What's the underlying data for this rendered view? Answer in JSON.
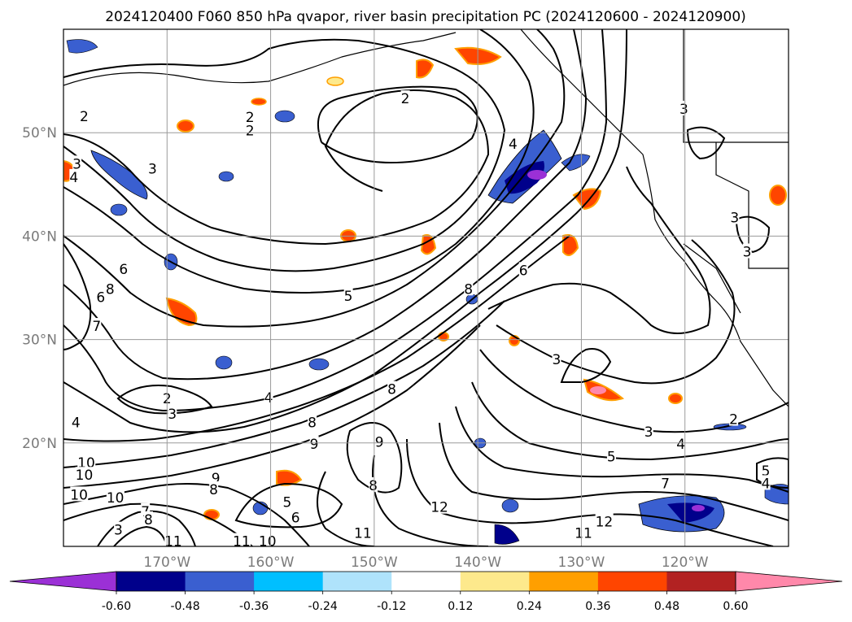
{
  "title": "2024120400 F060 850 hPa qvapor, river basin precipitation PC (2024120600 - 2024120900)",
  "map": {
    "lon_range": [
      -180,
      -110
    ],
    "lat_range": [
      10,
      60
    ],
    "lat_ticks": [
      {
        "value": 50,
        "label": "50°N"
      },
      {
        "value": 40,
        "label": "40°N"
      },
      {
        "value": 30,
        "label": "30°N"
      },
      {
        "value": 20,
        "label": "20°N"
      }
    ],
    "lon_ticks": [
      {
        "value": -170,
        "label": "170°W"
      },
      {
        "value": -160,
        "label": "160°W"
      },
      {
        "value": -150,
        "label": "150°W"
      },
      {
        "value": -140,
        "label": "140°W"
      },
      {
        "value": -130,
        "label": "130°W"
      },
      {
        "value": -120,
        "label": "120°W"
      }
    ],
    "contour_labels": [
      {
        "text": "2",
        "lon": -147,
        "lat": 53.3
      },
      {
        "text": "2",
        "lon": -178,
        "lat": 51.6
      },
      {
        "text": "2",
        "lon": -162,
        "lat": 51.5
      },
      {
        "text": "2",
        "lon": -162,
        "lat": 50.2
      },
      {
        "text": "3",
        "lon": -171.4,
        "lat": 46.5
      },
      {
        "text": "3",
        "lon": -178.7,
        "lat": 47
      },
      {
        "text": "4",
        "lon": -179,
        "lat": 45.7
      },
      {
        "text": "4",
        "lon": -136.6,
        "lat": 48.9
      },
      {
        "text": "3",
        "lon": -120.1,
        "lat": 52.3
      },
      {
        "text": "3",
        "lon": -115.2,
        "lat": 41.8
      },
      {
        "text": "3",
        "lon": -114,
        "lat": 38.5
      },
      {
        "text": "6",
        "lon": -174.2,
        "lat": 36.8
      },
      {
        "text": "8",
        "lon": -175.5,
        "lat": 34.9
      },
      {
        "text": "6",
        "lon": -176.4,
        "lat": 34.1
      },
      {
        "text": "7",
        "lon": -176.8,
        "lat": 31.3
      },
      {
        "text": "5",
        "lon": -152.5,
        "lat": 34.2
      },
      {
        "text": "6",
        "lon": -135.6,
        "lat": 36.7
      },
      {
        "text": "8",
        "lon": -140.9,
        "lat": 34.9
      },
      {
        "text": "3",
        "lon": -132.4,
        "lat": 28.1
      },
      {
        "text": "2",
        "lon": -170,
        "lat": 24.3
      },
      {
        "text": "3",
        "lon": -169.5,
        "lat": 22.8
      },
      {
        "text": "4",
        "lon": -178.8,
        "lat": 22
      },
      {
        "text": "4",
        "lon": -160.2,
        "lat": 24.4
      },
      {
        "text": "8",
        "lon": -156,
        "lat": 22
      },
      {
        "text": "8",
        "lon": -148.3,
        "lat": 25.2
      },
      {
        "text": "9",
        "lon": -149.5,
        "lat": 20.1
      },
      {
        "text": "9",
        "lon": -155.8,
        "lat": 19.9
      },
      {
        "text": "3",
        "lon": -123.5,
        "lat": 21.1
      },
      {
        "text": "4",
        "lon": -120.4,
        "lat": 19.9
      },
      {
        "text": "2",
        "lon": -115.3,
        "lat": 22.3
      },
      {
        "text": "5",
        "lon": -127.1,
        "lat": 18.7
      },
      {
        "text": "7",
        "lon": -121.9,
        "lat": 16.1
      },
      {
        "text": "5",
        "lon": -112.2,
        "lat": 17.3
      },
      {
        "text": "4",
        "lon": -112.2,
        "lat": 16.1
      },
      {
        "text": "10",
        "lon": -177.8,
        "lat": 18.1
      },
      {
        "text": "10",
        "lon": -178,
        "lat": 16.9
      },
      {
        "text": "10",
        "lon": -178.5,
        "lat": 15
      },
      {
        "text": "10",
        "lon": -175,
        "lat": 14.7
      },
      {
        "text": "9",
        "lon": -165.3,
        "lat": 16.6
      },
      {
        "text": "8",
        "lon": -165.5,
        "lat": 15.5
      },
      {
        "text": "5",
        "lon": -158.4,
        "lat": 14.3
      },
      {
        "text": "6",
        "lon": -157.6,
        "lat": 12.8
      },
      {
        "text": "7",
        "lon": -172.1,
        "lat": 13.4
      },
      {
        "text": "8",
        "lon": -171.8,
        "lat": 12.6
      },
      {
        "text": "3",
        "lon": -174.7,
        "lat": 11.6
      },
      {
        "text": "11",
        "lon": -169.4,
        "lat": 10.5
      },
      {
        "text": "11",
        "lon": -162.8,
        "lat": 10.5
      },
      {
        "text": "10",
        "lon": -160.3,
        "lat": 10.5
      },
      {
        "text": "8",
        "lon": -150.1,
        "lat": 15.9
      },
      {
        "text": "12",
        "lon": -143.7,
        "lat": 13.8
      },
      {
        "text": "11",
        "lon": -151.1,
        "lat": 11.3
      },
      {
        "text": "11",
        "lon": -129.8,
        "lat": 11.3
      },
      {
        "text": "12",
        "lon": -127.8,
        "lat": 12.4
      }
    ]
  },
  "colorbar": {
    "labels": [
      "-0.60",
      "-0.48",
      "-0.36",
      "-0.24",
      "-0.12",
      "0.12",
      "0.24",
      "0.36",
      "0.48",
      "0.60"
    ],
    "colors": {
      "extend_low": "#9b30d6",
      "bins": [
        "#00008b",
        "#3a5fd0",
        "#00bfff",
        "#afe3fb",
        "#ffffff",
        "#fde98c",
        "#ff9f00",
        "#ff4500",
        "#b22222"
      ],
      "extend_high": "#ff88aa"
    }
  }
}
